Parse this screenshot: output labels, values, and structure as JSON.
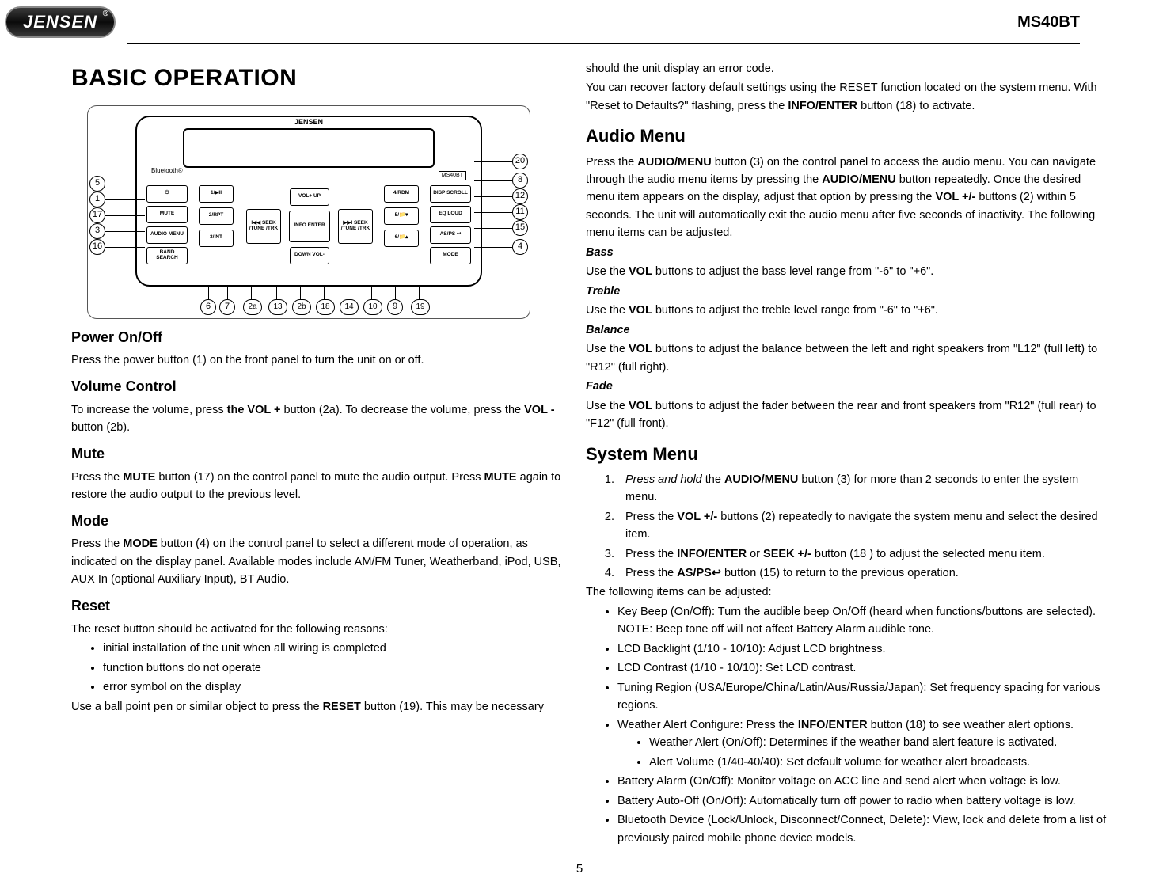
{
  "header": {
    "brand": "JENSEN",
    "model": "MS40BT"
  },
  "page_number": "5",
  "left": {
    "title": "BASIC OPERATION",
    "diagram": {
      "brand": "JENSEN",
      "bt": "Bluetooth®",
      "model_tag": "MS40BT",
      "left_buttons": [
        "⏻",
        "MUTE",
        "AUDIO MENU",
        "BAND SEARCH"
      ],
      "right_buttons": [
        "DISP SCROLL",
        "EQ LOUD",
        "AS/PS ↩",
        "MODE"
      ],
      "mid_row1": [
        "1/▶II",
        "4/RDM"
      ],
      "mid_row2": [
        "2/RPT",
        "5/📁▾"
      ],
      "mid_row3": [
        "3/INT",
        "6/📁▴"
      ],
      "center": {
        "up": "VOL+ UP",
        "down": "DOWN VOL-",
        "left": "I◀◀ SEEK /TUNE /TRK",
        "right": "▶▶I SEEK /TUNE /TRK",
        "mid": "INFO ENTER"
      },
      "callouts_left": [
        "5",
        "1",
        "17",
        "3",
        "16"
      ],
      "callouts_right": [
        "20",
        "8",
        "12",
        "11",
        "15",
        "4"
      ],
      "callouts_bottom": [
        "6",
        "7",
        "2a",
        "13",
        "2b",
        "18",
        "14",
        "10",
        "9",
        "19"
      ]
    },
    "sections": [
      {
        "h": "Power On/Off",
        "body": [
          [
            "Press the power button (1) on the front panel to turn the unit on or off."
          ]
        ]
      },
      {
        "h": "Volume Control",
        "body": [
          [
            "To increase the volume, press ",
            {
              "b": "the VOL +"
            },
            " button (2a). To decrease the volume, press the ",
            {
              "b": "VOL -"
            },
            " button (2b)."
          ]
        ]
      },
      {
        "h": "Mute",
        "body": [
          [
            "Press the ",
            {
              "b": "MUTE"
            },
            " button (17) on the control panel to mute the audio output. Press ",
            {
              "b": "MUTE"
            },
            " again to restore the audio output to the previous level."
          ]
        ]
      },
      {
        "h": "Mode",
        "body": [
          [
            "Press the ",
            {
              "b": "MODE"
            },
            " button (4) on the control panel to select a different mode of operation, as indicated on the display panel. Available modes include AM/FM Tuner, Weatherband, iPod, USB, AUX In (optional Auxiliary Input), BT Audio."
          ]
        ]
      },
      {
        "h": "Reset",
        "body": [
          [
            "The reset button should be activated for the following reasons:"
          ]
        ],
        "bullets": [
          "initial installation of the unit when all wiring is completed",
          "function buttons do not operate",
          "error symbol on the display"
        ],
        "after": [
          [
            "Use a ball point pen or similar object to press the ",
            {
              "b": "RESET"
            },
            " button (19). This may be necessary"
          ]
        ]
      }
    ]
  },
  "right": {
    "intro": [
      [
        "should the unit display an error code."
      ],
      [
        "You can recover factory default settings using the RESET function located on the system menu. With \"Reset to Defaults?\" flashing, press the ",
        {
          "b": "INFO/ENTER"
        },
        " button (18) to activate."
      ]
    ],
    "audio": {
      "h": "Audio Menu",
      "intro": [
        [
          "Press the ",
          {
            "b": "AUDIO/MENU"
          },
          " button (3) on the control panel to access the audio menu. You can navigate through the audio menu items by pressing the ",
          {
            "b": "AUDIO/MENU"
          },
          " button repeatedly. Once the desired menu item appears on the display, adjust that option by pressing the ",
          {
            "b": "VOL +/-"
          },
          " buttons (2) within 5 seconds. The unit will automatically exit the audio menu after five seconds of inactivity. The following menu items can be adjusted."
        ]
      ],
      "items": [
        {
          "name": "Bass",
          "body": [
            [
              "Use the ",
              {
                "b": "VOL"
              },
              " buttons to adjust the bass level range from \"-6\" to \"+6\"."
            ]
          ]
        },
        {
          "name": "Treble",
          "body": [
            [
              "Use the ",
              {
                "b": "VOL"
              },
              " buttons to adjust the treble level range from \"-6\" to \"+6\"."
            ]
          ]
        },
        {
          "name": "Balance",
          "body": [
            [
              "Use the ",
              {
                "b": "VOL"
              },
              " buttons to adjust the balance between the left and right speakers from \"L12\" (full left) to \"R12\" (full right)."
            ]
          ]
        },
        {
          "name": "Fade",
          "body": [
            [
              "Use the ",
              {
                "b": "VOL"
              },
              " buttons to adjust the fader between the rear and front speakers from \"R12\" (full rear) to \"F12\" (full front)."
            ]
          ]
        }
      ]
    },
    "system": {
      "h": "System Menu",
      "steps": [
        [
          {
            "i": "Press and hold"
          },
          " the ",
          {
            "b": "AUDIO/MENU"
          },
          " button (3) for more than 2 seconds to enter the system menu."
        ],
        [
          "Press the ",
          {
            "b": "VOL +/-"
          },
          " buttons (2) repeatedly to navigate the system menu and select the desired item."
        ],
        [
          "Press the ",
          {
            "b": "INFO/ENTER"
          },
          " or ",
          {
            "b": "SEEK +/-"
          },
          " button (18 ) to adjust the selected menu item."
        ],
        [
          "Press the ",
          {
            "b": "AS/PS"
          },
          {
            "arrow": "↩"
          },
          " button (15) to return to the previous operation."
        ]
      ],
      "after_steps": "The following items can be adjusted:",
      "bullets": [
        {
          "t": [
            "Key Beep (On/Off): Turn the audible beep On/Off (heard when functions/buttons are selected). NOTE: Beep tone off will not affect Battery Alarm audible tone."
          ]
        },
        {
          "t": [
            "LCD Backlight (1/10 - 10/10): Adjust LCD brightness."
          ]
        },
        {
          "t": [
            "LCD Contrast (1/10 - 10/10): Set LCD contrast."
          ]
        },
        {
          "t": [
            "Tuning Region (USA/Europe/China/Latin/Aus/Russia/Japan): Set frequency spacing for various regions."
          ]
        },
        {
          "t": [
            "Weather Alert Configure: Press the ",
            {
              "b": "INFO/ENTER"
            },
            " button (18) to see weather alert options."
          ],
          "sub": [
            "Weather Alert (On/Off): Determines if the weather band alert feature is activated.",
            "Alert Volume (1/40-40/40): Set default volume for weather alert broadcasts."
          ]
        },
        {
          "t": [
            "Battery Alarm (On/Off): Monitor voltage on ACC line and send alert when voltage is low."
          ]
        },
        {
          "t": [
            "Battery Auto-Off (On/Off): Automatically turn off power to radio when battery voltage is low."
          ]
        },
        {
          "t": [
            "Bluetooth Device (Lock/Unlock, Disconnect/Connect, Delete): View, lock and delete from a list of previously paired mobile phone device models."
          ]
        }
      ]
    }
  }
}
